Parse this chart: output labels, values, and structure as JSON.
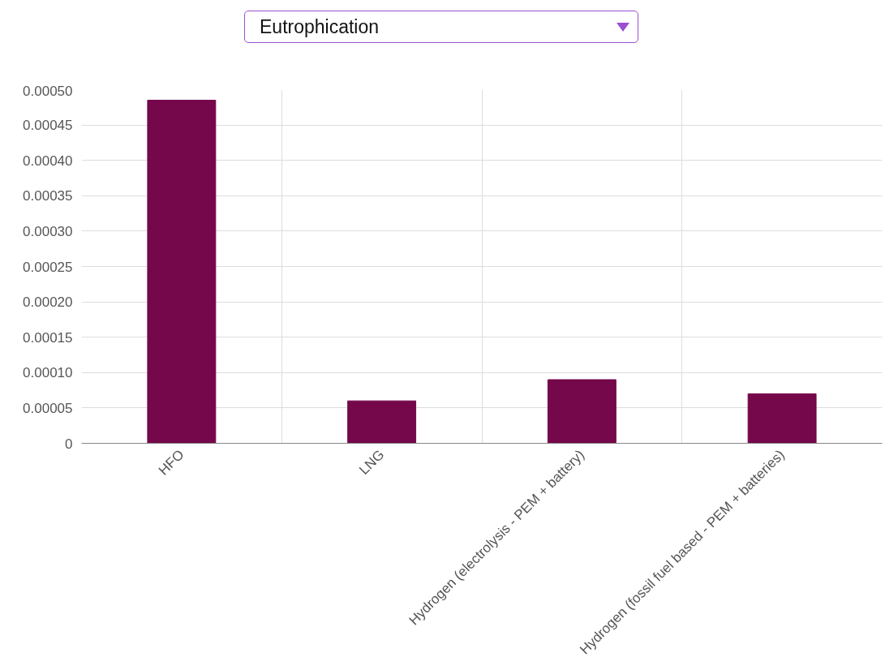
{
  "chart_data": {
    "type": "bar",
    "title": "Eutrophication",
    "categories": [
      "HFO",
      "LNG",
      "Hydrogen (electrolysis - PEM + battery)",
      "Hydrogen (fossil fuel based - PEM + batteries)"
    ],
    "values": [
      0.000485,
      6e-05,
      9e-05,
      7e-05
    ],
    "color": "#75074b",
    "ylim": [
      0,
      0.0005
    ],
    "yticks": [
      {
        "value": 0,
        "label": "0"
      },
      {
        "value": 5e-05,
        "label": "0.00005"
      },
      {
        "value": 0.0001,
        "label": "0.00010"
      },
      {
        "value": 0.00015,
        "label": "0.00015"
      },
      {
        "value": 0.0002,
        "label": "0.00020"
      },
      {
        "value": 0.00025,
        "label": "0.00025"
      },
      {
        "value": 0.0003,
        "label": "0.00030"
      },
      {
        "value": 0.00035,
        "label": "0.00035"
      },
      {
        "value": 0.0004,
        "label": "0.00040"
      },
      {
        "value": 0.00045,
        "label": "0.00045"
      },
      {
        "value": 0.0005,
        "label": "0.00050"
      }
    ],
    "grid": true
  }
}
